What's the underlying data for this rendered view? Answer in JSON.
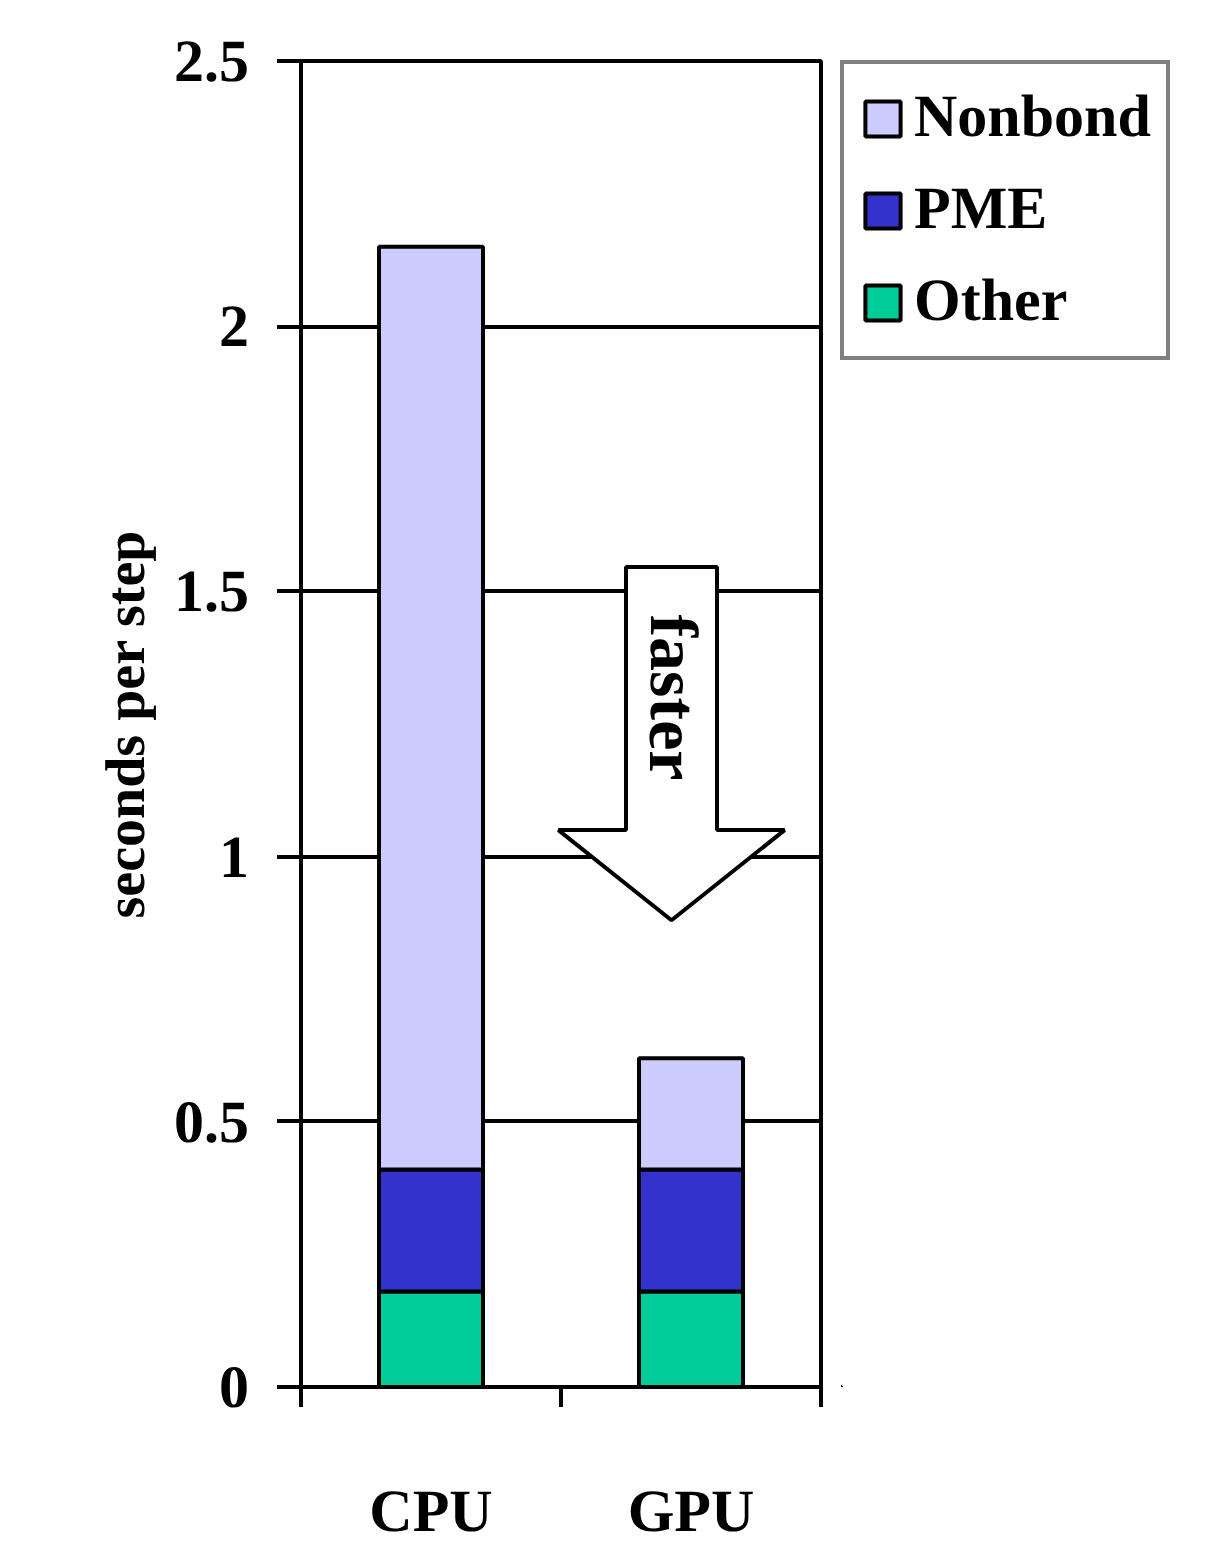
{
  "chart_data": {
    "type": "bar",
    "stacked": true,
    "ylabel": "seconds per step",
    "categories": [
      "CPU",
      "GPU"
    ],
    "series": [
      {
        "name": "Other",
        "color": "#00cc99",
        "values": [
          0.18,
          0.18
        ]
      },
      {
        "name": "PME",
        "color": "#3333cc",
        "values": [
          0.23,
          0.23
        ]
      },
      {
        "name": "Nonbond",
        "color": "#ccccff",
        "values": [
          1.74,
          0.21
        ]
      }
    ],
    "ylim": [
      0,
      2.5
    ],
    "yticks": [
      0,
      0.5,
      1,
      1.5,
      2,
      2.5
    ],
    "grid": "y",
    "legend": "top right",
    "annotations": [
      "faster"
    ]
  }
}
